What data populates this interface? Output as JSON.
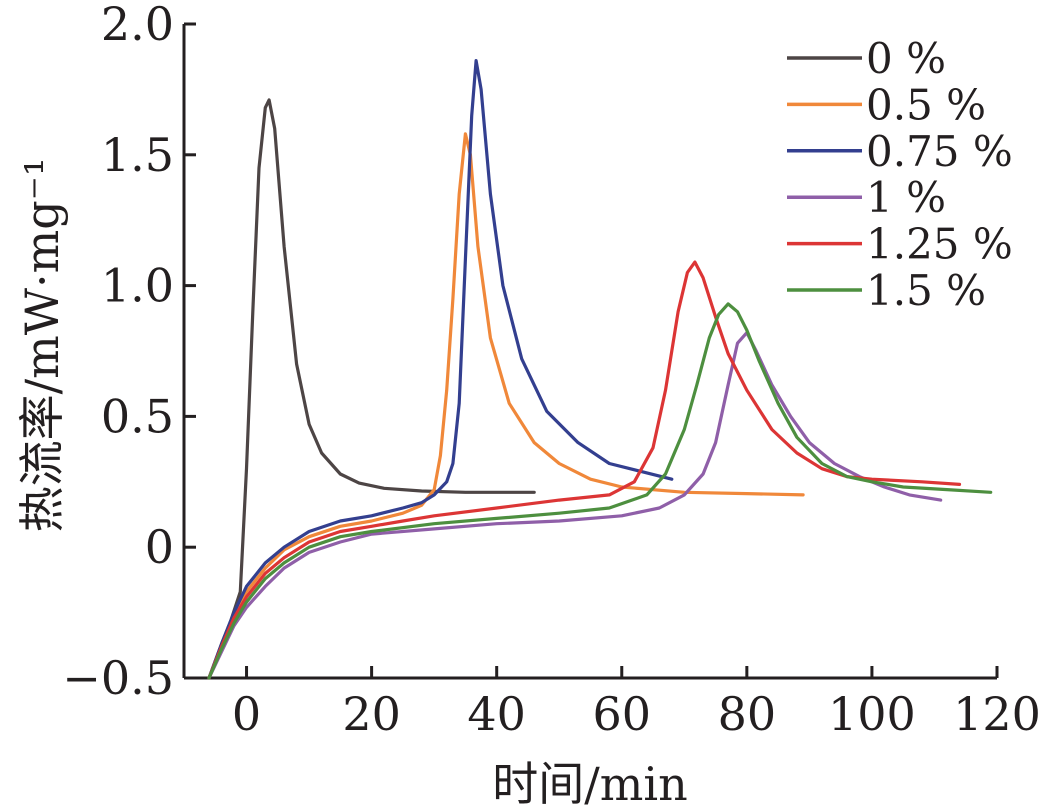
{
  "chart_data": {
    "type": "line",
    "xlabel": "时间/min",
    "ylabel": "热流率/mW·mg⁻¹",
    "xlim": [
      -10,
      120
    ],
    "ylim": [
      -0.5,
      2.0
    ],
    "xticks": [
      0,
      20,
      40,
      60,
      80,
      100,
      120
    ],
    "xtick_labels": [
      "0",
      "20",
      "40",
      "60",
      "80",
      "100",
      "120"
    ],
    "yticks": [
      -0.5,
      0,
      0.5,
      1.0,
      1.5,
      2.0
    ],
    "ytick_labels": [
      "−0.5",
      "0",
      "0.5",
      "1.0",
      "1.5",
      "2.0"
    ],
    "grid": false,
    "legend_position": "top-right",
    "series": [
      {
        "name": "0 %",
        "color": "#4d4545",
        "points": [
          [
            -6,
            -0.5
          ],
          [
            -4,
            -0.37
          ],
          [
            -2.5,
            -0.28
          ],
          [
            -1,
            -0.17
          ],
          [
            0,
            0.3
          ],
          [
            1,
            0.9
          ],
          [
            2,
            1.45
          ],
          [
            3,
            1.68
          ],
          [
            3.6,
            1.71
          ],
          [
            4.5,
            1.6
          ],
          [
            6,
            1.15
          ],
          [
            8,
            0.7
          ],
          [
            10,
            0.47
          ],
          [
            12,
            0.36
          ],
          [
            15,
            0.28
          ],
          [
            18,
            0.245
          ],
          [
            22,
            0.225
          ],
          [
            28,
            0.215
          ],
          [
            35,
            0.21
          ],
          [
            46,
            0.21
          ]
        ]
      },
      {
        "name": "0.5 %",
        "color": "#f0883a",
        "points": [
          [
            -6,
            -0.5
          ],
          [
            -4,
            -0.38
          ],
          [
            -2,
            -0.26
          ],
          [
            0,
            -0.17
          ],
          [
            3,
            -0.08
          ],
          [
            6,
            -0.01
          ],
          [
            10,
            0.04
          ],
          [
            15,
            0.08
          ],
          [
            20,
            0.1
          ],
          [
            25,
            0.13
          ],
          [
            28,
            0.16
          ],
          [
            30,
            0.22
          ],
          [
            31,
            0.35
          ],
          [
            32,
            0.6
          ],
          [
            33,
            0.95
          ],
          [
            34,
            1.35
          ],
          [
            35,
            1.58
          ],
          [
            35.8,
            1.5
          ],
          [
            37,
            1.15
          ],
          [
            39,
            0.8
          ],
          [
            42,
            0.55
          ],
          [
            46,
            0.4
          ],
          [
            50,
            0.32
          ],
          [
            55,
            0.26
          ],
          [
            60,
            0.23
          ],
          [
            70,
            0.21
          ],
          [
            80,
            0.205
          ],
          [
            89,
            0.2
          ]
        ]
      },
      {
        "name": "0.75 %",
        "color": "#333f8f",
        "points": [
          [
            -6,
            -0.5
          ],
          [
            -4,
            -0.37
          ],
          [
            -2,
            -0.25
          ],
          [
            0,
            -0.15
          ],
          [
            3,
            -0.06
          ],
          [
            6,
            0.0
          ],
          [
            10,
            0.06
          ],
          [
            15,
            0.1
          ],
          [
            20,
            0.12
          ],
          [
            25,
            0.15
          ],
          [
            28,
            0.17
          ],
          [
            30,
            0.2
          ],
          [
            32,
            0.25
          ],
          [
            33,
            0.32
          ],
          [
            34,
            0.55
          ],
          [
            35,
            1.1
          ],
          [
            36,
            1.65
          ],
          [
            36.7,
            1.86
          ],
          [
            37.5,
            1.75
          ],
          [
            39,
            1.35
          ],
          [
            41,
            1.0
          ],
          [
            44,
            0.72
          ],
          [
            48,
            0.52
          ],
          [
            53,
            0.4
          ],
          [
            58,
            0.32
          ],
          [
            63,
            0.29
          ],
          [
            68,
            0.26
          ]
        ]
      },
      {
        "name": "1 %",
        "color": "#8f5fa8",
        "points": [
          [
            -6,
            -0.5
          ],
          [
            -4,
            -0.4
          ],
          [
            -2,
            -0.3
          ],
          [
            0,
            -0.23
          ],
          [
            3,
            -0.15
          ],
          [
            6,
            -0.08
          ],
          [
            10,
            -0.02
          ],
          [
            15,
            0.02
          ],
          [
            20,
            0.05
          ],
          [
            30,
            0.07
          ],
          [
            40,
            0.09
          ],
          [
            50,
            0.1
          ],
          [
            60,
            0.12
          ],
          [
            66,
            0.15
          ],
          [
            70,
            0.2
          ],
          [
            73,
            0.28
          ],
          [
            75,
            0.4
          ],
          [
            77,
            0.62
          ],
          [
            78.5,
            0.78
          ],
          [
            80,
            0.82
          ],
          [
            81.5,
            0.75
          ],
          [
            84,
            0.62
          ],
          [
            87,
            0.5
          ],
          [
            90,
            0.4
          ],
          [
            94,
            0.32
          ],
          [
            98,
            0.27
          ],
          [
            102,
            0.23
          ],
          [
            106,
            0.2
          ],
          [
            111,
            0.18
          ]
        ]
      },
      {
        "name": "1.25 %",
        "color": "#dc3535",
        "points": [
          [
            -6,
            -0.5
          ],
          [
            -4,
            -0.38
          ],
          [
            -2,
            -0.27
          ],
          [
            0,
            -0.19
          ],
          [
            3,
            -0.1
          ],
          [
            6,
            -0.04
          ],
          [
            10,
            0.02
          ],
          [
            15,
            0.06
          ],
          [
            20,
            0.08
          ],
          [
            25,
            0.1
          ],
          [
            30,
            0.12
          ],
          [
            40,
            0.15
          ],
          [
            50,
            0.18
          ],
          [
            58,
            0.2
          ],
          [
            62,
            0.25
          ],
          [
            65,
            0.38
          ],
          [
            67,
            0.6
          ],
          [
            69,
            0.9
          ],
          [
            70.5,
            1.05
          ],
          [
            71.7,
            1.09
          ],
          [
            73,
            1.03
          ],
          [
            75,
            0.88
          ],
          [
            77,
            0.74
          ],
          [
            80,
            0.6
          ],
          [
            84,
            0.45
          ],
          [
            88,
            0.36
          ],
          [
            92,
            0.3
          ],
          [
            96,
            0.27
          ],
          [
            100,
            0.26
          ],
          [
            108,
            0.25
          ],
          [
            114,
            0.24
          ]
        ]
      },
      {
        "name": "1.5 %",
        "color": "#4d8f3f",
        "points": [
          [
            -6,
            -0.5
          ],
          [
            -4,
            -0.39
          ],
          [
            -2,
            -0.29
          ],
          [
            0,
            -0.21
          ],
          [
            3,
            -0.12
          ],
          [
            6,
            -0.06
          ],
          [
            10,
            0.0
          ],
          [
            15,
            0.04
          ],
          [
            20,
            0.06
          ],
          [
            30,
            0.09
          ],
          [
            40,
            0.11
          ],
          [
            50,
            0.13
          ],
          [
            58,
            0.15
          ],
          [
            64,
            0.2
          ],
          [
            67,
            0.28
          ],
          [
            70,
            0.45
          ],
          [
            72,
            0.62
          ],
          [
            74,
            0.8
          ],
          [
            75.5,
            0.89
          ],
          [
            77,
            0.93
          ],
          [
            78.5,
            0.9
          ],
          [
            80,
            0.83
          ],
          [
            82,
            0.71
          ],
          [
            85,
            0.55
          ],
          [
            88,
            0.42
          ],
          [
            92,
            0.32
          ],
          [
            96,
            0.27
          ],
          [
            100,
            0.25
          ],
          [
            105,
            0.23
          ],
          [
            112,
            0.22
          ],
          [
            119,
            0.21
          ]
        ]
      }
    ]
  }
}
